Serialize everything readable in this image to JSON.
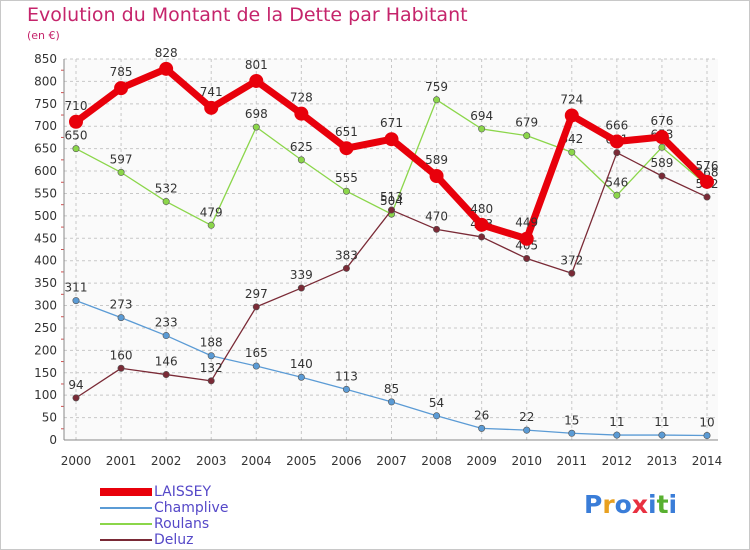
{
  "title": "Evolution du Montant de la Dette par Habitant",
  "subtitle": "(en €)",
  "brand": [
    "P",
    "r",
    "o",
    "x",
    "i",
    "t",
    "i"
  ],
  "brand_colors": [
    "#3a7dd8",
    "#e8a020",
    "#3a7dd8",
    "#e83040",
    "#3a7dd8",
    "#58b030",
    "#3a7dd8"
  ],
  "chart_data": {
    "type": "line",
    "x": [
      "2000",
      "2001",
      "2002",
      "2003",
      "2004",
      "2005",
      "2006",
      "2007",
      "2008",
      "2009",
      "2010",
      "2011",
      "2012",
      "2013",
      "2014"
    ],
    "ylim": [
      0,
      850
    ],
    "yticks": [
      0,
      50,
      100,
      150,
      200,
      250,
      300,
      350,
      400,
      450,
      500,
      550,
      600,
      650,
      700,
      750,
      800,
      850
    ],
    "grid": true,
    "legend_position": "bottom-left",
    "series": [
      {
        "name": "LAISSEY",
        "color": "#e8000b",
        "values": [
          710,
          785,
          828,
          741,
          801,
          728,
          651,
          671,
          589,
          480,
          449,
          724,
          666,
          676,
          576
        ],
        "labels": [
          "710",
          "785",
          "828",
          "741",
          "801",
          "728",
          "651",
          "671",
          "589",
          "480",
          "449",
          "724",
          "666",
          "676",
          "576"
        ]
      },
      {
        "name": "Champlive",
        "color": "#5b9bd5",
        "values": [
          311,
          273,
          233,
          188,
          165,
          140,
          113,
          85,
          54,
          26,
          22,
          15,
          11,
          11,
          10
        ],
        "labels": [
          "311",
          "273",
          "233",
          "188",
          "165",
          "140",
          "113",
          "85",
          "54",
          "26",
          "22",
          "15",
          "11",
          "11",
          "10"
        ]
      },
      {
        "name": "Roulans",
        "color": "#8bd64a",
        "values": [
          650,
          597,
          532,
          479,
          698,
          625,
          555,
          504,
          759,
          694,
          679,
          642,
          546,
          653,
          568
        ],
        "labels": [
          "650",
          "597",
          "532",
          "479",
          "698",
          "625",
          "555",
          "504",
          "759",
          "694",
          "679",
          "642",
          "546",
          "653",
          "568"
        ]
      },
      {
        "name": "Deluz",
        "color": "#7a2a36",
        "values": [
          94,
          160,
          146,
          132,
          297,
          339,
          383,
          513,
          470,
          453,
          405,
          372,
          641,
          589,
          542
        ],
        "labels": [
          "94",
          "160",
          "146",
          "132",
          "297",
          "339",
          "383",
          "513",
          "470",
          "453",
          "405",
          "372",
          "641",
          "589",
          "542"
        ]
      }
    ]
  }
}
